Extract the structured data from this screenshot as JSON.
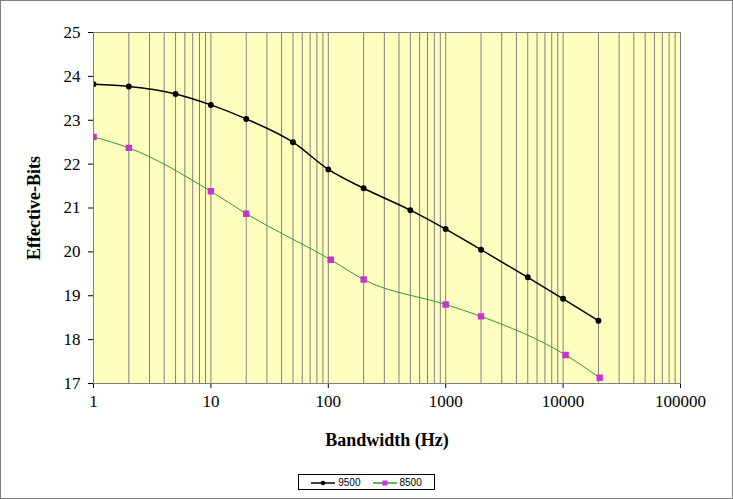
{
  "chart_data": {
    "type": "line",
    "x_label": "Bandwidth (Hz)",
    "y_label": "Effective-Bits",
    "log": "x",
    "grid": "x",
    "legend": "bottom",
    "xlim": [
      1,
      100000
    ],
    "xticks": [
      1,
      10,
      100,
      1000,
      10000,
      100000
    ],
    "ylim": [
      17,
      25
    ],
    "yticks": [
      17,
      18,
      19,
      20,
      21,
      22,
      23,
      24,
      25
    ],
    "series": [
      {
        "name": "9500",
        "color": "#000000",
        "marker": "circle",
        "x": [
          1,
          2,
          5,
          10,
          20,
          50,
          100,
          200,
          500,
          1000,
          2000,
          5000,
          10000,
          20000
        ],
        "values": [
          23.82,
          23.77,
          23.6,
          23.35,
          23.03,
          22.5,
          21.88,
          21.45,
          20.95,
          20.52,
          20.05,
          19.42,
          18.93,
          18.43
        ]
      },
      {
        "name": "8500",
        "color": "#cc33cc",
        "marker": "square",
        "x": [
          1,
          2,
          10,
          20,
          105,
          200,
          1000,
          2000,
          10500,
          20500
        ],
        "values": [
          22.62,
          22.37,
          21.38,
          20.87,
          19.82,
          19.37,
          18.8,
          18.53,
          17.65,
          17.13
        ]
      }
    ]
  }
}
